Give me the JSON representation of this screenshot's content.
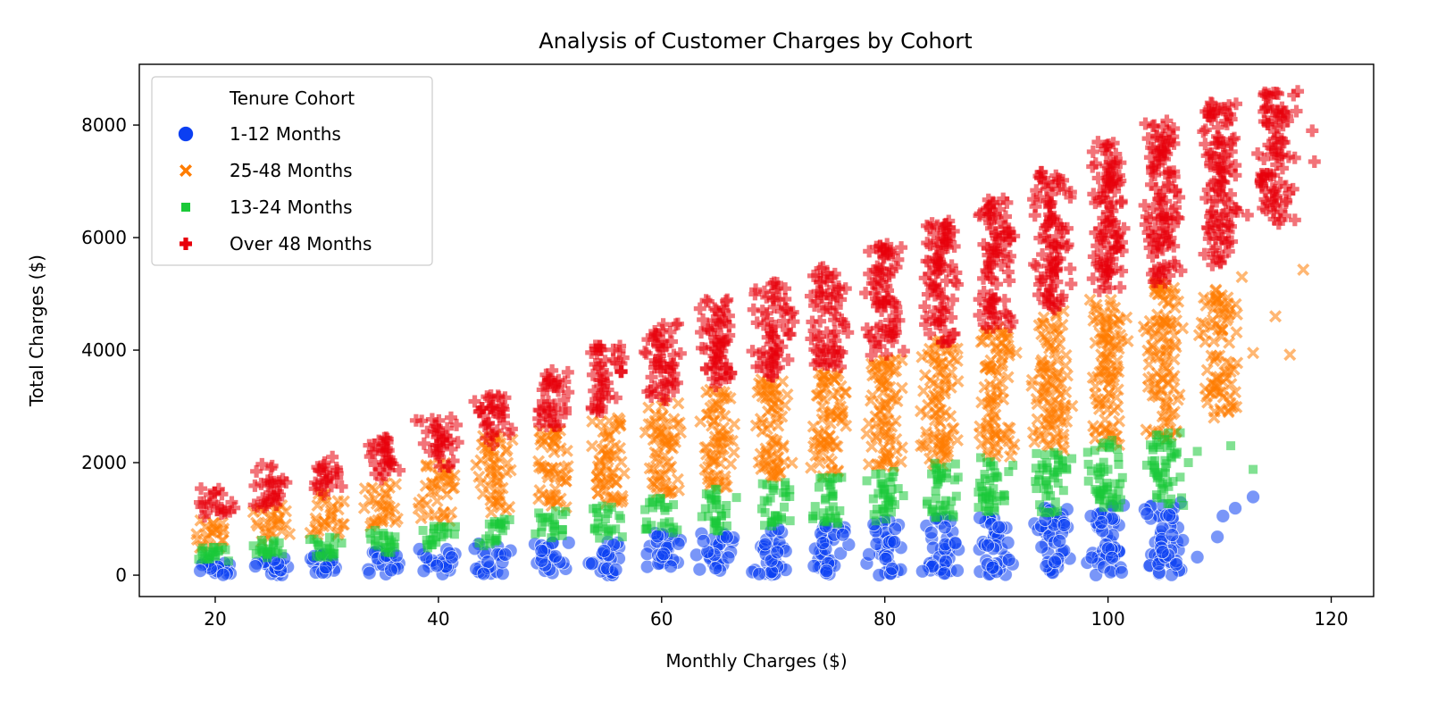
{
  "chart_data": {
    "type": "scatter",
    "title": "Analysis of Customer Charges by Cohort",
    "xlabel": "Monthly Charges ($)",
    "ylabel": "Total Charges ($)",
    "xlim": [
      13.2,
      123.8
    ],
    "ylim": [
      -380,
      9080
    ],
    "xticks": [
      20,
      40,
      60,
      80,
      100,
      120
    ],
    "yticks": [
      0,
      2000,
      4000,
      6000,
      8000
    ],
    "grid": false,
    "legend": {
      "title": "Tenure Cohort",
      "placement": "upper-left"
    },
    "series": [
      {
        "name": "1-12 Months",
        "marker": "circle",
        "color": "#0b3ff2",
        "clusters": [
          [
            20.0,
            0,
            280
          ],
          [
            25.0,
            0,
            300
          ],
          [
            30.0,
            0,
            380
          ],
          [
            35.0,
            0,
            450
          ],
          [
            40.0,
            0,
            470
          ],
          [
            45.0,
            0,
            560
          ],
          [
            50.0,
            0,
            600
          ],
          [
            55.0,
            0,
            650
          ],
          [
            60.0,
            0,
            760
          ],
          [
            65.0,
            0,
            760
          ],
          [
            70.0,
            0,
            860
          ],
          [
            75.0,
            0,
            920
          ],
          [
            80.0,
            0,
            1000
          ],
          [
            85.0,
            0,
            1050
          ],
          [
            90.0,
            0,
            1090
          ],
          [
            95.0,
            0,
            1200
          ],
          [
            100.0,
            0,
            1250
          ],
          [
            105.0,
            0,
            1280
          ]
        ],
        "points": [
          [
            108,
            320
          ],
          [
            109.8,
            680
          ],
          [
            110.3,
            1050
          ],
          [
            111.4,
            1190
          ],
          [
            113,
            1390
          ],
          [
            103.5,
            1090
          ],
          [
            106.5,
            1290
          ]
        ]
      },
      {
        "name": "25-48 Months",
        "marker": "x",
        "color": "#ff7c00",
        "clusters": [
          [
            19.8,
            470,
            1000
          ],
          [
            25.0,
            590,
            1300
          ],
          [
            30.0,
            700,
            1450
          ],
          [
            35.0,
            850,
            1650
          ],
          [
            40.0,
            950,
            2000
          ],
          [
            45.0,
            1100,
            2500
          ],
          [
            50.0,
            1200,
            2600
          ],
          [
            55.0,
            1250,
            2800
          ],
          [
            60.0,
            1450,
            3100
          ],
          [
            65.0,
            1550,
            3300
          ],
          [
            70.0,
            1650,
            3500
          ],
          [
            75.0,
            1750,
            3600
          ],
          [
            80.0,
            1850,
            3900
          ],
          [
            85.0,
            1950,
            4200
          ],
          [
            90.0,
            2100,
            4400
          ],
          [
            95.0,
            2200,
            4700
          ],
          [
            100.0,
            2300,
            4900
          ],
          [
            105.0,
            2400,
            5200
          ],
          [
            110.0,
            2900,
            5100
          ]
        ],
        "points": [
          [
            117.5,
            5430
          ],
          [
            116.3,
            3920
          ],
          [
            115,
            4600
          ],
          [
            113,
            3950
          ],
          [
            112,
            5300
          ],
          [
            109.5,
            2800
          ],
          [
            110.8,
            2900
          ]
        ]
      },
      {
        "name": "13-24 Months",
        "marker": "square",
        "color": "#1ac938",
        "clusters": [
          [
            19.8,
            250,
            500
          ],
          [
            25.0,
            300,
            620
          ],
          [
            30.0,
            320,
            700
          ],
          [
            35.0,
            400,
            800
          ],
          [
            40.0,
            480,
            900
          ],
          [
            45.0,
            520,
            1000
          ],
          [
            50.0,
            580,
            1150
          ],
          [
            55.0,
            650,
            1250
          ],
          [
            60.0,
            750,
            1400
          ],
          [
            65.0,
            780,
            1550
          ],
          [
            70.0,
            850,
            1650
          ],
          [
            75.0,
            900,
            1750
          ],
          [
            80.0,
            950,
            1850
          ],
          [
            85.0,
            1000,
            2000
          ],
          [
            90.0,
            1050,
            2100
          ],
          [
            95.0,
            1100,
            2250
          ],
          [
            100.0,
            1150,
            2450
          ],
          [
            105.0,
            1200,
            2550
          ]
        ],
        "points": [
          [
            113,
            1880
          ],
          [
            111,
            2300
          ],
          [
            108,
            2200
          ],
          [
            107.2,
            2000
          ]
        ]
      },
      {
        "name": "Over 48 Months",
        "marker": "plus",
        "color": "#e8000b",
        "clusters": [
          [
            20.0,
            1000,
            1550
          ],
          [
            25.0,
            1200,
            1980
          ],
          [
            30.0,
            1400,
            2000
          ],
          [
            35.0,
            1700,
            2500
          ],
          [
            40.0,
            1900,
            2800
          ],
          [
            45.0,
            2300,
            3200
          ],
          [
            50.0,
            2600,
            3650
          ],
          [
            55.0,
            2900,
            4100
          ],
          [
            60.0,
            3100,
            4500
          ],
          [
            65.0,
            3300,
            4900
          ],
          [
            70.0,
            3500,
            5200
          ],
          [
            75.0,
            3700,
            5500
          ],
          [
            80.0,
            3900,
            5900
          ],
          [
            85.0,
            4100,
            6300
          ],
          [
            90.0,
            4400,
            6700
          ],
          [
            95.0,
            4700,
            7200
          ],
          [
            100.0,
            5000,
            7700
          ],
          [
            105.0,
            5200,
            8100
          ],
          [
            110.0,
            5500,
            8400
          ],
          [
            115.0,
            6300,
            8650
          ]
        ],
        "points": [
          [
            118.5,
            7350
          ],
          [
            118.3,
            7900
          ],
          [
            117,
            8600
          ],
          [
            112.5,
            6400
          ],
          [
            110.8,
            6100
          ],
          [
            115.3,
            6250
          ],
          [
            30.5,
            2100
          ],
          [
            38,
            2750
          ]
        ]
      }
    ]
  }
}
